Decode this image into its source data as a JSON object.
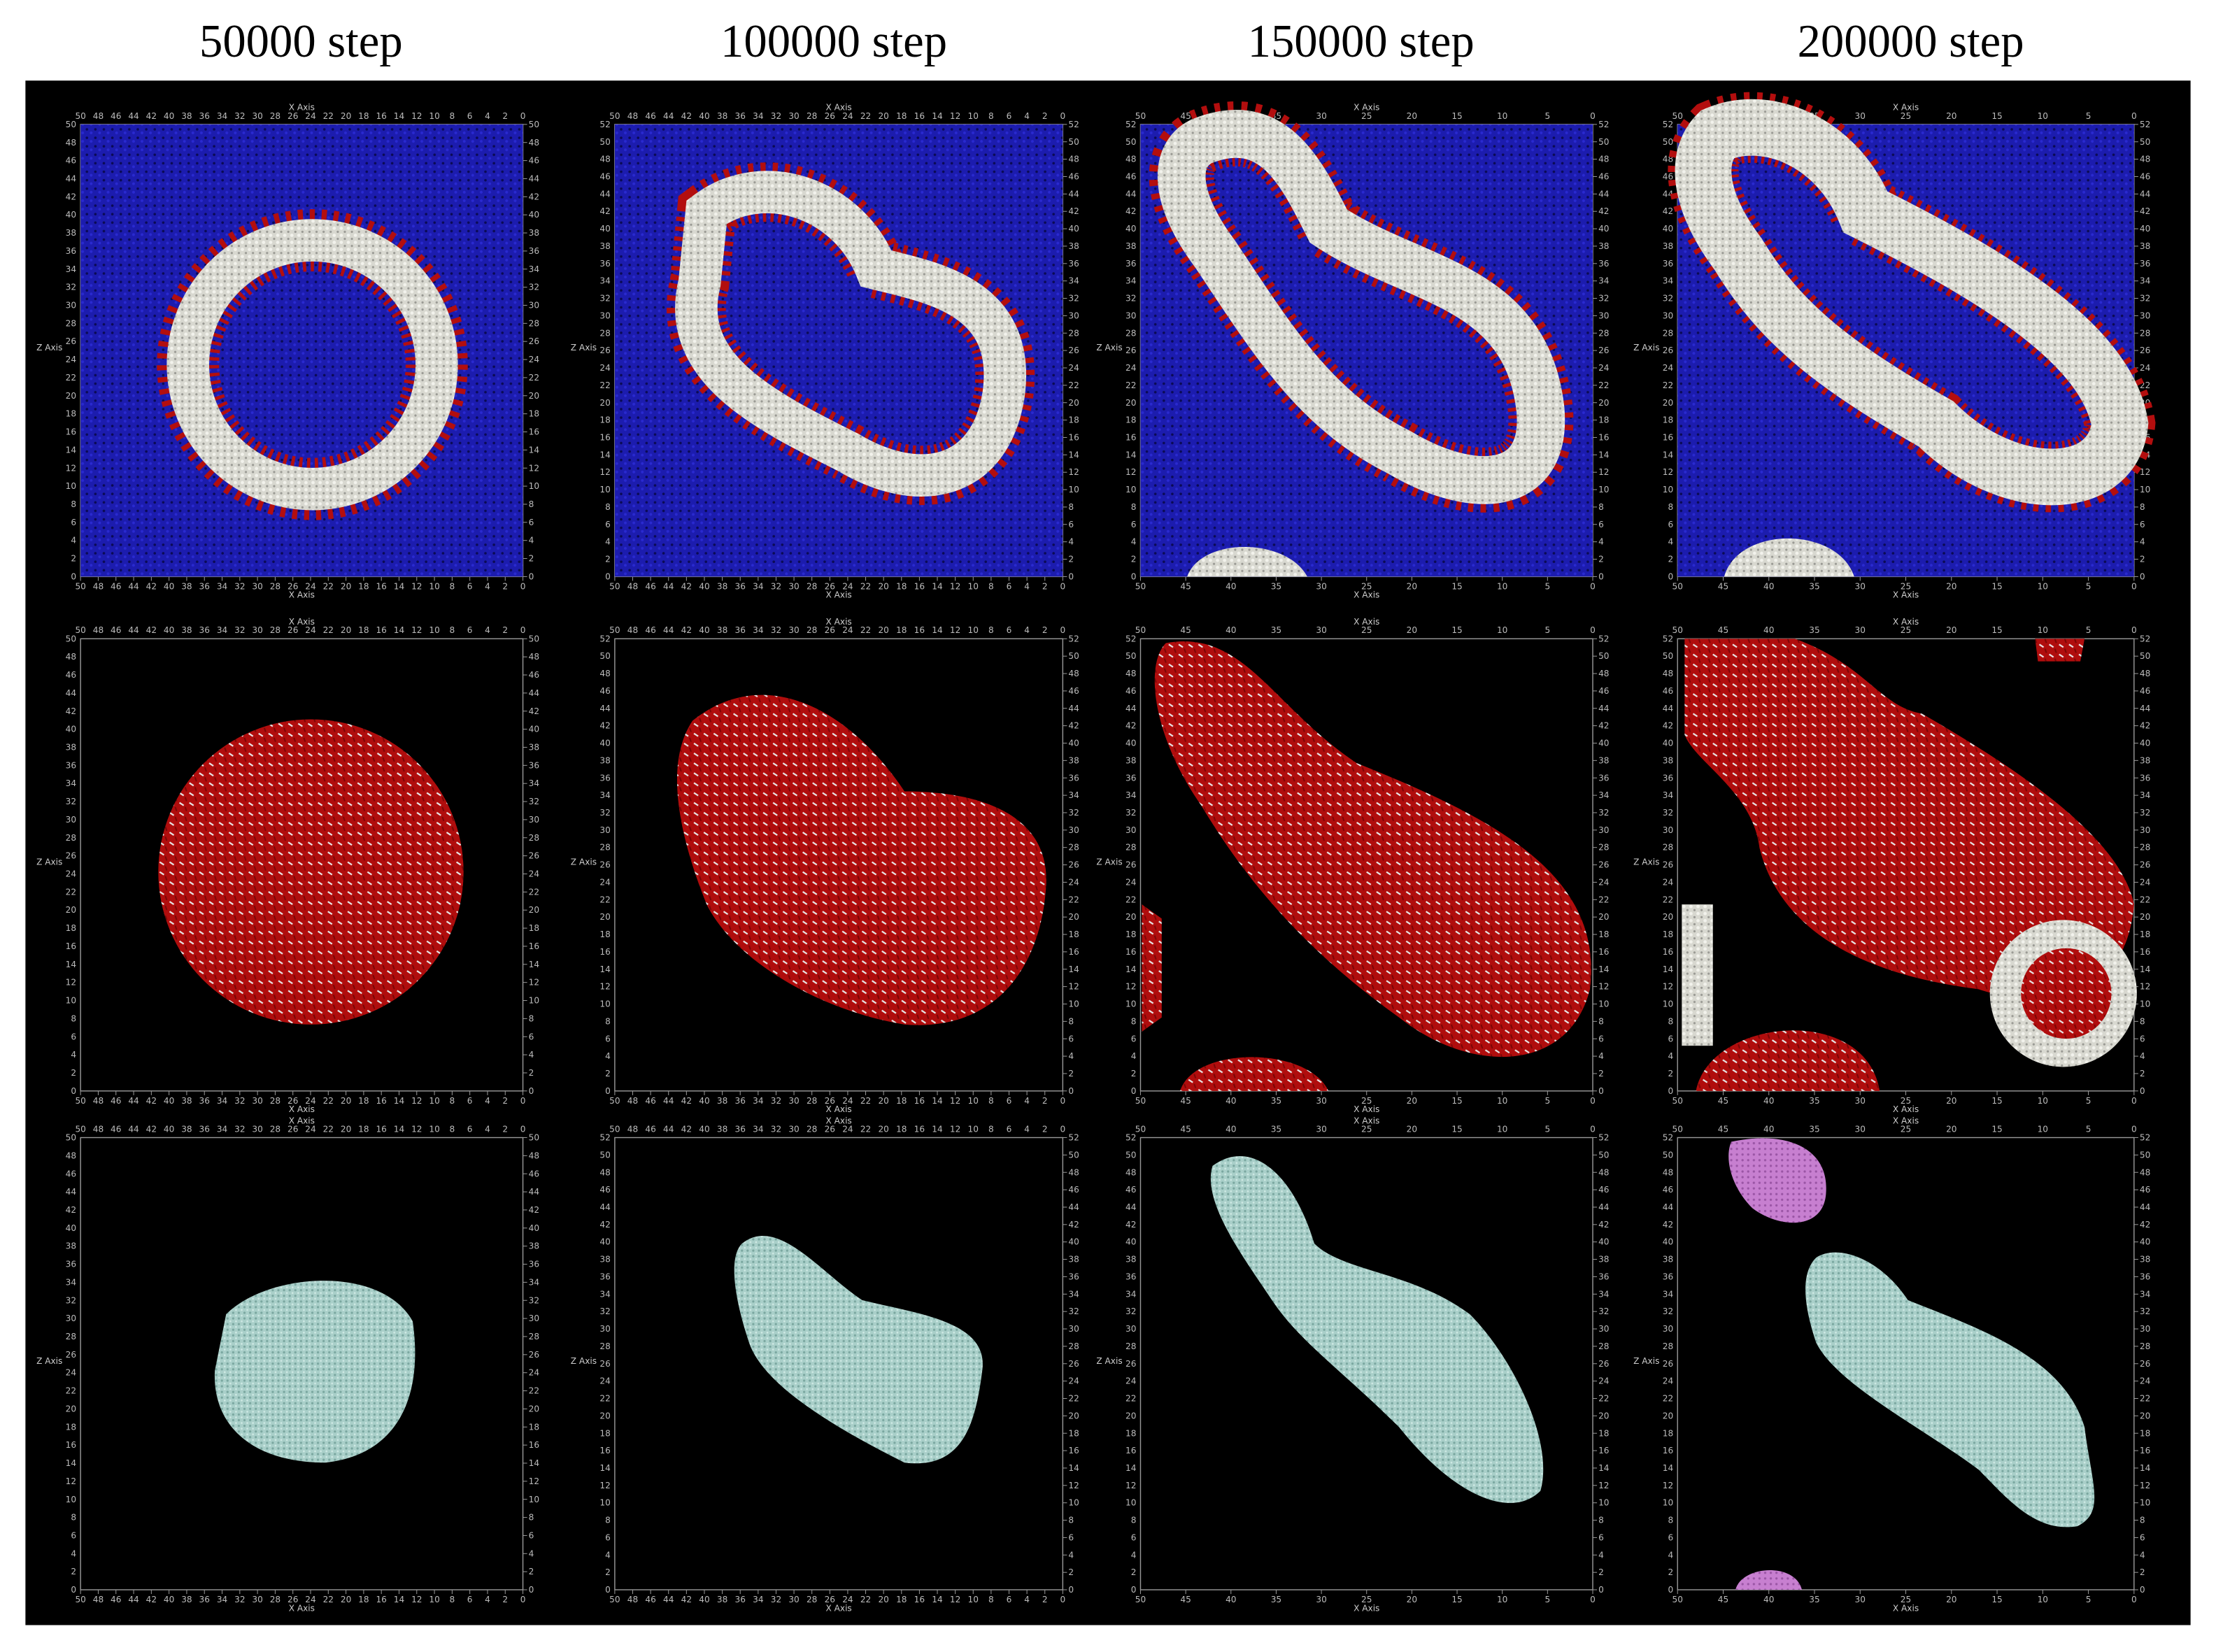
{
  "header": {
    "columns": [
      "50000 step",
      "100000 step",
      "150000 step",
      "200000 step"
    ]
  },
  "axis_labels": {
    "x": "X Axis",
    "z": "Z Axis"
  },
  "panels_axes": [
    {
      "xticks": [
        50,
        48,
        46,
        44,
        42,
        40,
        38,
        36,
        34,
        32,
        30,
        28,
        26,
        24,
        22,
        20,
        18,
        16,
        14,
        12,
        10,
        8,
        6,
        4,
        2,
        0
      ],
      "yticks": [
        0,
        2,
        4,
        6,
        8,
        10,
        12,
        14,
        16,
        18,
        20,
        22,
        24,
        26,
        28,
        30,
        32,
        34,
        36,
        38,
        40,
        42,
        44,
        46,
        48,
        50
      ]
    },
    {
      "xticks": [
        50,
        48,
        46,
        44,
        42,
        40,
        38,
        36,
        34,
        32,
        30,
        28,
        26,
        24,
        22,
        20,
        18,
        16,
        14,
        12,
        10,
        8,
        6,
        4,
        2,
        0
      ],
      "yticks": [
        0,
        2,
        4,
        6,
        8,
        10,
        12,
        14,
        16,
        18,
        20,
        22,
        24,
        26,
        28,
        30,
        32,
        34,
        36,
        38,
        40,
        42,
        44,
        46,
        48,
        50,
        52
      ]
    },
    {
      "xticks": [
        50,
        45,
        40,
        35,
        30,
        25,
        20,
        15,
        10,
        5,
        0
      ],
      "yticks": [
        0,
        2,
        4,
        6,
        8,
        10,
        12,
        14,
        16,
        18,
        20,
        22,
        24,
        26,
        28,
        30,
        32,
        34,
        36,
        38,
        40,
        42,
        44,
        46,
        48,
        50,
        52
      ]
    },
    {
      "xticks": [
        50,
        45,
        40,
        35,
        30,
        25,
        20,
        15,
        10,
        5,
        0
      ],
      "yticks": [
        0,
        2,
        4,
        6,
        8,
        10,
        12,
        14,
        16,
        18,
        20,
        22,
        24,
        26,
        28,
        30,
        32,
        34,
        36,
        38,
        40,
        42,
        44,
        46,
        48,
        50,
        52
      ]
    }
  ]
}
